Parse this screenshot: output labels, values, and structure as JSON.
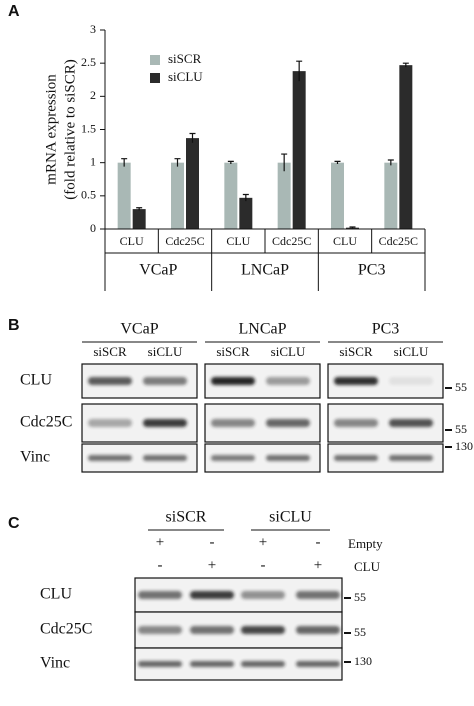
{
  "chart_data": {
    "type": "bar",
    "letter": "A",
    "ylabel": [
      "mRNA expression",
      "(fold relative to siSCR)"
    ],
    "categories": [
      "CLU",
      "Cdc25C",
      "CLU",
      "Cdc25C",
      "CLU",
      "Cdc25C"
    ],
    "groups": [
      "VCaP",
      "LNCaP",
      "PC3"
    ],
    "series": [
      {
        "name": "siSCR",
        "color": "#a9b8b5",
        "values": [
          1,
          1,
          1,
          1,
          1,
          1
        ],
        "errors": [
          0.06,
          0.06,
          0.02,
          0.13,
          0.02,
          0.04
        ]
      },
      {
        "name": "siCLU",
        "color": "#2b2b2b",
        "values": [
          0.3,
          1.37,
          0.47,
          2.38,
          0.02,
          2.47
        ],
        "errors": [
          0.02,
          0.07,
          0.05,
          0.15,
          0.01,
          0.03
        ]
      }
    ],
    "ylim": [
      0,
      3
    ],
    "yticks": [
      0,
      0.5,
      1,
      1.5,
      2,
      2.5,
      3
    ]
  },
  "blot_b": {
    "letter": "B",
    "columns": [
      {
        "name": "VCaP",
        "lanes": [
          "siSCR",
          "siCLU"
        ]
      },
      {
        "name": "LNCaP",
        "lanes": [
          "siSCR",
          "siCLU"
        ]
      },
      {
        "name": "PC3",
        "lanes": [
          "siSCR",
          "siCLU"
        ]
      }
    ],
    "rows": [
      "CLU",
      "Cdc25C",
      "Vinc"
    ],
    "markers": [
      55,
      55,
      130
    ]
  },
  "blot_c": {
    "letter": "C",
    "groups": [
      "siSCR",
      "siCLU"
    ],
    "conditions": [
      {
        "name": "Empty",
        "signs": [
          "+",
          "-",
          "+",
          "-"
        ]
      },
      {
        "name": "CLU",
        "signs": [
          "-",
          "+",
          "-",
          "+"
        ]
      }
    ],
    "rows": [
      "CLU",
      "Cdc25C",
      "Vinc"
    ],
    "markers": [
      55,
      55,
      130
    ]
  }
}
